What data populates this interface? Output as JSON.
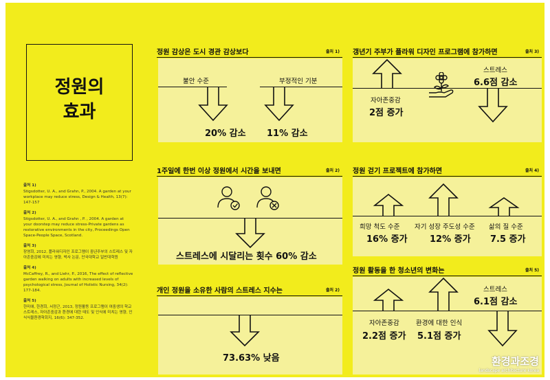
{
  "title": {
    "line1": "정원의",
    "line2": "효과"
  },
  "references": [
    {
      "label": "출처 1)",
      "text": "Stigsdotter, U. A., and Grahn, P., 2004. A garden at your workplace may reduce stress, Design & Health, 13(7): 147-157"
    },
    {
      "label": "출처 2)",
      "text": "Stigsdotter, U. A., and Grahn , P. , 2004. A garden at your doorstep may reduce stress-Private gardens as restorative environments in the city, Proceedings Open Space-People Space, Scotland."
    },
    {
      "label": "출처 3)",
      "text": "장영희, 2012, 플라워디자인 프로그램이 중년주부의 스트레스 및 자아존중감에 미치는 영향, 박사 논문, 단국대학교 일반대학원"
    },
    {
      "label": "출처 4)",
      "text": "McCaffrey, R., and Liehr, P., 2016, The effect of reflective garden walking on adults with increased levels of psychological stress, Journal of Holistic Nursing, 34(2): 177-184."
    },
    {
      "label": "출처 5)",
      "text": "한미애, 한경희, 서정근, 2013, 정원활동 프로그램이 여중생의 학교스트레스, 자아존중감과 환경에 대한 태도 및 인식에 미치는 영향, 인식식물환경학회지, 16(6): 347-352."
    }
  ],
  "s1": {
    "heading": "정원 감상은 도시 경관 감상보다",
    "source": "출처 1)",
    "left_label": "불안 수준",
    "left_value": "20% 감소",
    "right_label": "부정적인 기분",
    "right_value": "11% 감소"
  },
  "s2": {
    "heading": "갱년기 주부가 플라워 디자인 프로그램에 참가하면",
    "source": "출처 3)",
    "left_label": "자아존중감",
    "left_value": "2점 증가",
    "right_label": "스트레스",
    "right_value": "6.6점 감소"
  },
  "s3": {
    "heading": "1주일에 한번 이상 정원에서 시간을 보내면",
    "source": "출처 2)",
    "value": "스트레스에 시달리는 횟수 60% 감소"
  },
  "s4": {
    "heading": "정원 걷기 프로젝트에 참가하면",
    "source": "출처 4)",
    "items": [
      {
        "label": "희망 척도 수준",
        "value": "16% 증가"
      },
      {
        "label": "자기 성장 주도성 수준",
        "value": "12% 증가"
      },
      {
        "label": "삶의 질 수준",
        "value": "7.5 증가"
      }
    ]
  },
  "s5": {
    "heading": "개인 정원을 소유한 사람의 스트레스 지수는",
    "source": "출처 2)",
    "value": "73.63% 낮음"
  },
  "s6": {
    "heading": "정원 활동을 한 청소년의 변화는",
    "source": "출처 5)",
    "items": [
      {
        "label": "자아존중감",
        "value": "2.2점 증가"
      },
      {
        "label": "환경에 대한 인식",
        "value": "5.1점 증가"
      },
      {
        "label": "스트레스",
        "value": "6.1점 감소"
      }
    ]
  },
  "watermark": {
    "name": "환경과조경",
    "sub": "landscape architecture korea"
  },
  "colors": {
    "background": "#f2ec1c",
    "panel": "#f5f19a",
    "ink": "#111111"
  }
}
